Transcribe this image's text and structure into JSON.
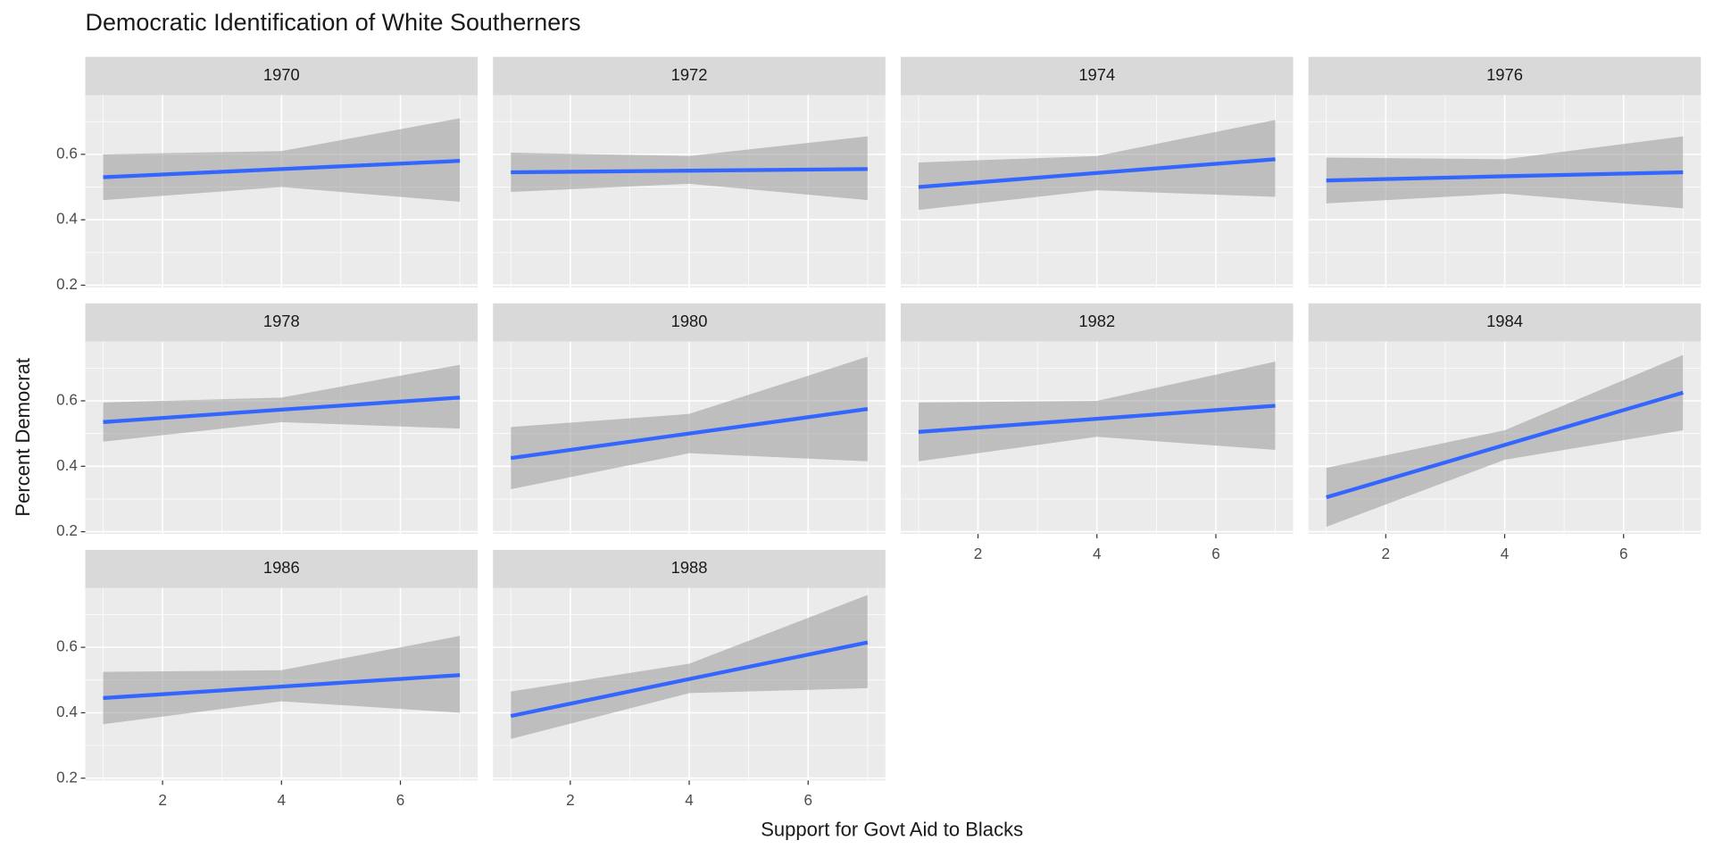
{
  "chart_data": {
    "type": "line",
    "title": "Democratic Identification of White Southerners",
    "x_label": "Support for Govt Aid to Blacks",
    "y_label": "Percent Democrat",
    "xlim": [
      0.7,
      7.3
    ],
    "ylim": [
      0.193,
      0.781
    ],
    "xticks": [
      2,
      4,
      6
    ],
    "yticks": [
      0.2,
      0.4,
      0.6
    ],
    "grid": true,
    "color": "#3366ff",
    "band_color": "#999999",
    "facets": [
      {
        "title": "1970",
        "x": [
          1,
          4,
          7
        ],
        "values": [
          0.53,
          0.555,
          0.58
        ],
        "lower": [
          0.46,
          0.5,
          0.455
        ],
        "upper": [
          0.6,
          0.61,
          0.71
        ]
      },
      {
        "title": "1972",
        "x": [
          1,
          4,
          7
        ],
        "values": [
          0.545,
          0.55,
          0.555
        ],
        "lower": [
          0.485,
          0.51,
          0.46
        ],
        "upper": [
          0.605,
          0.595,
          0.655
        ]
      },
      {
        "title": "1974",
        "x": [
          1,
          4,
          7
        ],
        "values": [
          0.5,
          0.543,
          0.585
        ],
        "lower": [
          0.43,
          0.49,
          0.47
        ],
        "upper": [
          0.575,
          0.595,
          0.705
        ]
      },
      {
        "title": "1976",
        "x": [
          1,
          4,
          7
        ],
        "values": [
          0.52,
          0.533,
          0.545
        ],
        "lower": [
          0.45,
          0.48,
          0.435
        ],
        "upper": [
          0.59,
          0.585,
          0.655
        ]
      },
      {
        "title": "1978",
        "x": [
          1,
          4,
          7
        ],
        "values": [
          0.535,
          0.573,
          0.61
        ],
        "lower": [
          0.475,
          0.535,
          0.515
        ],
        "upper": [
          0.595,
          0.61,
          0.71
        ]
      },
      {
        "title": "1980",
        "x": [
          1,
          4,
          7
        ],
        "values": [
          0.425,
          0.5,
          0.575
        ],
        "lower": [
          0.33,
          0.44,
          0.415
        ],
        "upper": [
          0.52,
          0.56,
          0.735
        ]
      },
      {
        "title": "1982",
        "x": [
          1,
          4,
          7
        ],
        "values": [
          0.505,
          0.545,
          0.585
        ],
        "lower": [
          0.415,
          0.49,
          0.45
        ],
        "upper": [
          0.595,
          0.6,
          0.72
        ]
      },
      {
        "title": "1984",
        "x": [
          1,
          4,
          7
        ],
        "values": [
          0.305,
          0.465,
          0.625
        ],
        "lower": [
          0.215,
          0.42,
          0.51
        ],
        "upper": [
          0.395,
          0.51,
          0.74
        ]
      },
      {
        "title": "1986",
        "x": [
          1,
          4,
          7
        ],
        "values": [
          0.445,
          0.48,
          0.515
        ],
        "lower": [
          0.365,
          0.435,
          0.4
        ],
        "upper": [
          0.525,
          0.53,
          0.635
        ]
      },
      {
        "title": "1988",
        "x": [
          1,
          4,
          7
        ],
        "values": [
          0.39,
          0.503,
          0.615
        ],
        "lower": [
          0.32,
          0.46,
          0.475
        ],
        "upper": [
          0.465,
          0.55,
          0.76
        ]
      }
    ]
  }
}
